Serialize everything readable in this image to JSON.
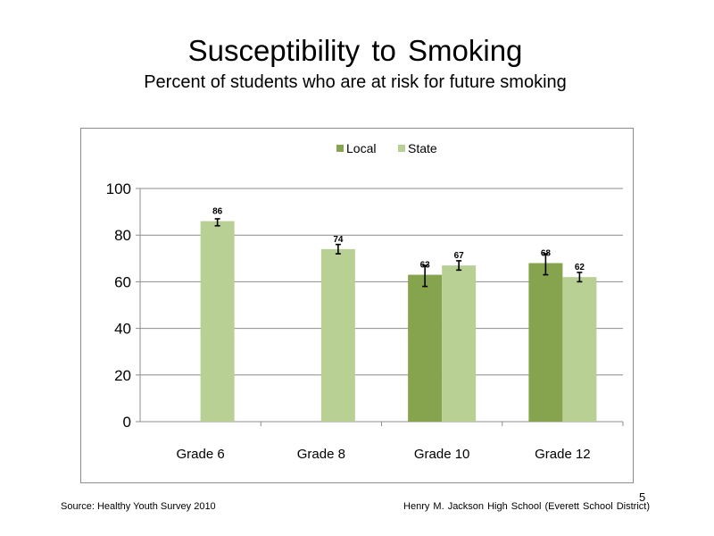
{
  "slide": {
    "title": "Susceptibility  to  Smoking",
    "subtitle": "Percent  of students  who are at risk for future  smoking",
    "source": "Source: Healthy  Youth Survey 2010",
    "organization": "Henry M.  Jackson High  School  (Everett School District)",
    "page_number": "5"
  },
  "chart_data": {
    "type": "bar",
    "categories": [
      "Grade 6",
      "Grade 8",
      "Grade 10",
      "Grade 12"
    ],
    "series": [
      {
        "name": "Local",
        "color": "#86a34e",
        "values": [
          null,
          null,
          63,
          68
        ],
        "labels": [
          "",
          "",
          "63",
          "68"
        ],
        "error_low": [
          null,
          null,
          58,
          63
        ],
        "error_high": [
          null,
          null,
          67,
          72
        ]
      },
      {
        "name": "State",
        "color": "#b9d094",
        "values": [
          86,
          74,
          67,
          62
        ],
        "labels": [
          "86",
          "74",
          "67",
          "62"
        ],
        "error_low": [
          84,
          72,
          65,
          60
        ],
        "error_high": [
          87,
          76,
          69,
          64
        ]
      }
    ],
    "y_ticks": [
      "0",
      "20",
      "40",
      "60",
      "80",
      "100"
    ],
    "ylim": [
      0,
      100
    ],
    "grid": true,
    "legend_position": "top-center"
  }
}
